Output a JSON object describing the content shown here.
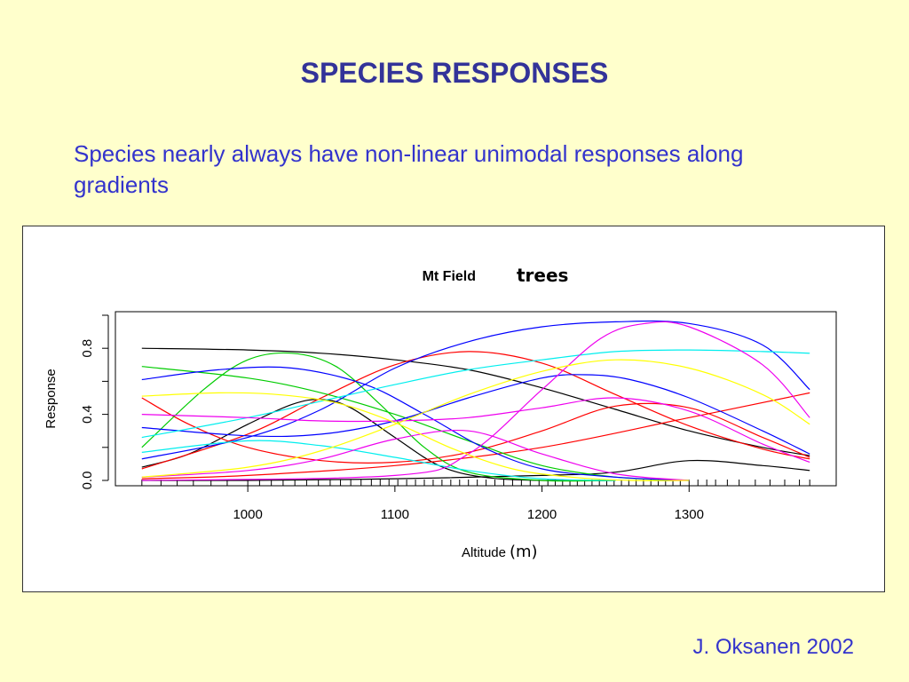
{
  "slide": {
    "title": "SPECIES RESPONSES",
    "body": "Species nearly always have non-linear unimodal responses along gradients",
    "credit": "J. Oksanen 2002"
  },
  "chart_data": {
    "type": "line",
    "title": "Mt Field",
    "title_emphasis": "trees",
    "xlabel": "Altitude",
    "xlabel_unit": "(m)",
    "ylabel": "Response",
    "xlim": [
      910,
      1400
    ],
    "ylim": [
      0,
      1.0
    ],
    "x_ticks": [
      1000,
      1100,
      1200,
      1300
    ],
    "x_tick_labels": [
      "1000",
      "1100",
      "1200",
      "1300"
    ],
    "y_ticks": [
      0.0,
      0.4,
      0.8
    ],
    "y_tick_labels": [
      "0.0",
      "0.4",
      "0.8"
    ],
    "grid": false,
    "legend": "none",
    "x_range": [
      928,
      1382
    ],
    "rug": [
      928,
      941,
      952,
      963,
      975,
      986,
      1000,
      1008,
      1016,
      1024,
      1032,
      1040,
      1048,
      1056,
      1063,
      1070,
      1077,
      1084,
      1090,
      1096,
      1102,
      1108,
      1114,
      1120,
      1126,
      1132,
      1138,
      1144,
      1150,
      1156,
      1162,
      1168,
      1174,
      1180,
      1186,
      1192,
      1198,
      1204,
      1209,
      1214,
      1219,
      1224,
      1229,
      1234,
      1239,
      1244,
      1249,
      1254,
      1259,
      1264,
      1269,
      1274,
      1279,
      1284,
      1289,
      1294,
      1300,
      1306,
      1312,
      1318,
      1326,
      1334,
      1345,
      1355,
      1365,
      1375,
      1382
    ],
    "series": [
      {
        "color": "#000000",
        "x": [
          928,
          1000,
          1050,
          1100,
          1150,
          1200,
          1250,
          1300,
          1350,
          1382
        ],
        "y": [
          0.8,
          0.79,
          0.77,
          0.73,
          0.67,
          0.56,
          0.43,
          0.3,
          0.2,
          0.15
        ]
      },
      {
        "color": "#000000",
        "x": [
          928,
          960,
          1000,
          1030,
          1050,
          1070,
          1100,
          1130,
          1160,
          1200,
          1250
        ],
        "y": [
          0.08,
          0.16,
          0.34,
          0.46,
          0.49,
          0.44,
          0.26,
          0.09,
          0.02,
          0.0,
          0.0
        ]
      },
      {
        "color": "#000000",
        "x": [
          928,
          1000,
          1100,
          1200,
          1250,
          1300,
          1350,
          1382
        ],
        "y": [
          0.0,
          0.0,
          0.01,
          0.03,
          0.05,
          0.12,
          0.09,
          0.06
        ]
      },
      {
        "color": "#ff0000",
        "x": [
          928,
          1000,
          1050,
          1100,
          1150,
          1200,
          1250,
          1300,
          1350,
          1382
        ],
        "y": [
          0.07,
          0.28,
          0.5,
          0.7,
          0.78,
          0.71,
          0.52,
          0.33,
          0.19,
          0.13
        ]
      },
      {
        "color": "#ff0000",
        "x": [
          928,
          960,
          1000,
          1050,
          1100,
          1150,
          1200,
          1250,
          1300,
          1350,
          1382
        ],
        "y": [
          0.5,
          0.34,
          0.2,
          0.12,
          0.11,
          0.17,
          0.3,
          0.45,
          0.44,
          0.26,
          0.14
        ]
      },
      {
        "color": "#ff0000",
        "x": [
          928,
          1000,
          1100,
          1200,
          1300,
          1382
        ],
        "y": [
          0.01,
          0.03,
          0.09,
          0.2,
          0.38,
          0.53
        ]
      },
      {
        "color": "#00cc00",
        "x": [
          928,
          970,
          1000,
          1030,
          1060,
          1090,
          1120,
          1150,
          1200,
          1250
        ],
        "y": [
          0.2,
          0.55,
          0.73,
          0.77,
          0.69,
          0.46,
          0.2,
          0.05,
          0.0,
          0.0
        ]
      },
      {
        "color": "#00cc00",
        "x": [
          928,
          1000,
          1050,
          1100,
          1150,
          1200,
          1250,
          1300
        ],
        "y": [
          0.69,
          0.62,
          0.53,
          0.4,
          0.24,
          0.09,
          0.02,
          0.0
        ]
      },
      {
        "color": "#0000ff",
        "x": [
          928,
          1000,
          1050,
          1100,
          1150,
          1200,
          1250,
          1300,
          1350,
          1382
        ],
        "y": [
          0.13,
          0.26,
          0.43,
          0.68,
          0.84,
          0.93,
          0.96,
          0.95,
          0.82,
          0.55
        ]
      },
      {
        "color": "#0000ff",
        "x": [
          928,
          980,
          1030,
          1080,
          1120,
          1160,
          1200,
          1250,
          1300
        ],
        "y": [
          0.61,
          0.67,
          0.68,
          0.58,
          0.4,
          0.2,
          0.07,
          0.02,
          0.0
        ]
      },
      {
        "color": "#0000ff",
        "x": [
          928,
          1000,
          1050,
          1100,
          1150,
          1200,
          1230,
          1260,
          1300,
          1350,
          1382
        ],
        "y": [
          0.32,
          0.27,
          0.28,
          0.36,
          0.5,
          0.62,
          0.64,
          0.61,
          0.5,
          0.3,
          0.16
        ]
      },
      {
        "color": "#00eeee",
        "x": [
          928,
          1000,
          1050,
          1100,
          1150,
          1200,
          1250,
          1300,
          1350,
          1382
        ],
        "y": [
          0.26,
          0.38,
          0.48,
          0.58,
          0.67,
          0.73,
          0.78,
          0.79,
          0.78,
          0.77
        ]
      },
      {
        "color": "#00eeee",
        "x": [
          928,
          1000,
          1050,
          1100,
          1150,
          1200,
          1250
        ],
        "y": [
          0.17,
          0.24,
          0.21,
          0.14,
          0.06,
          0.01,
          0.0
        ]
      },
      {
        "color": "#ee00ee",
        "x": [
          928,
          1100,
          1150,
          1200,
          1240,
          1270,
          1300,
          1350,
          1382
        ],
        "y": [
          0.0,
          0.03,
          0.16,
          0.55,
          0.86,
          0.95,
          0.93,
          0.7,
          0.38
        ]
      },
      {
        "color": "#ee00ee",
        "x": [
          928,
          1000,
          1050,
          1100,
          1150,
          1200,
          1250,
          1300,
          1350,
          1382
        ],
        "y": [
          0.4,
          0.38,
          0.36,
          0.36,
          0.38,
          0.44,
          0.5,
          0.42,
          0.22,
          0.11
        ]
      },
      {
        "color": "#ee00ee",
        "x": [
          928,
          1000,
          1050,
          1100,
          1150,
          1200,
          1250,
          1300
        ],
        "y": [
          0.02,
          0.06,
          0.13,
          0.25,
          0.3,
          0.16,
          0.04,
          0.0
        ]
      },
      {
        "color": "#ffff00",
        "x": [
          928,
          1000,
          1050,
          1100,
          1150,
          1200,
          1250,
          1300,
          1350,
          1382
        ],
        "y": [
          0.02,
          0.08,
          0.18,
          0.34,
          0.52,
          0.66,
          0.73,
          0.68,
          0.52,
          0.34
        ]
      },
      {
        "color": "#ffff00",
        "x": [
          928,
          980,
          1020,
          1060,
          1100,
          1140,
          1180,
          1220,
          1260,
          1300
        ],
        "y": [
          0.51,
          0.53,
          0.52,
          0.47,
          0.35,
          0.19,
          0.07,
          0.02,
          0.0,
          0.0
        ]
      }
    ]
  }
}
